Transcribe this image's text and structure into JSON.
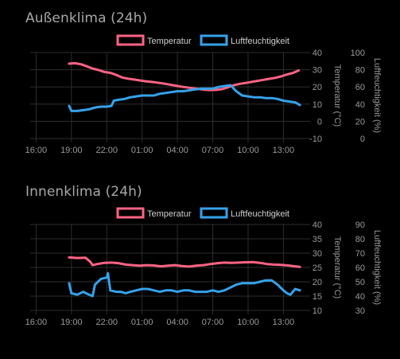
{
  "charts": [
    {
      "title": "Außenklima (24h)",
      "chart_data": {
        "type": "line",
        "x_ticks": [
          "16:00",
          "19:00",
          "22:00",
          "01:00",
          "04:00",
          "07:00",
          "10:00",
          "13:00"
        ],
        "x_range_hours": [
          15.5,
          39.0
        ],
        "legend_position": "top",
        "grid": true,
        "y_axis_left": {
          "label": "Temperatur (°C)",
          "ticks": [
            -10,
            0,
            10,
            20,
            30,
            40
          ],
          "range": [
            -10,
            40
          ]
        },
        "y_axis_right": {
          "label": "Luftfeuchtigkeit (%)",
          "ticks": [
            0,
            20,
            40,
            60,
            80,
            100
          ],
          "range": [
            0,
            100
          ]
        },
        "series": [
          {
            "name": "Temperatur",
            "axis": "left",
            "color": "#ff6384",
            "x": [
              18.8,
              19.3,
              19.8,
              20.3,
              20.8,
              21.3,
              21.8,
              22.3,
              22.8,
              23.3,
              23.8,
              24.3,
              24.8,
              25.3,
              25.8,
              26.3,
              26.8,
              27.3,
              27.8,
              28.3,
              28.8,
              29.3,
              29.8,
              30.3,
              30.8,
              31.3,
              31.8,
              32.3,
              32.8,
              33.3,
              33.8,
              34.3,
              34.8,
              35.3,
              35.8,
              36.3,
              36.8,
              37.3,
              37.8,
              38.3
            ],
            "y": [
              33.5,
              33.8,
              33.2,
              32.0,
              30.7,
              29.8,
              28.7,
              28.2,
              27.0,
              25.5,
              24.8,
              24.3,
              23.8,
              23.3,
              22.9,
              22.5,
              22.0,
              21.4,
              20.8,
              20.2,
              19.7,
              19.2,
              18.8,
              18.4,
              18.2,
              18.3,
              18.7,
              19.8,
              21.0,
              21.8,
              22.3,
              22.9,
              23.5,
              24.1,
              24.7,
              25.3,
              26.1,
              27.2,
              28.1,
              29.6
            ]
          },
          {
            "name": "Luftfeuchtigkeit",
            "axis": "right",
            "color": "#36a2eb",
            "x": [
              18.8,
              19.0,
              19.5,
              20.0,
              20.5,
              21.0,
              21.5,
              22.0,
              22.4,
              22.6,
              23.0,
              23.5,
              24.0,
              24.5,
              25.0,
              25.5,
              26.0,
              26.5,
              27.0,
              27.5,
              28.0,
              28.5,
              29.0,
              29.5,
              30.0,
              30.5,
              31.0,
              31.5,
              32.0,
              32.5,
              33.0,
              33.5,
              34.0,
              34.5,
              35.0,
              35.5,
              36.0,
              36.5,
              37.0,
              37.5,
              38.0,
              38.4
            ],
            "y": [
              38,
              32,
              32,
              33,
              34,
              36,
              37,
              37,
              38,
              44,
              45,
              46,
              48,
              49,
              50,
              50,
              50,
              52,
              53,
              54,
              55,
              55,
              56,
              57,
              58,
              58,
              58,
              60,
              61,
              62,
              55,
              50,
              49,
              48,
              48,
              47,
              47,
              46,
              44,
              43,
              42,
              39
            ]
          }
        ]
      }
    },
    {
      "title": "Innenklima (24h)",
      "chart_data": {
        "type": "line",
        "x_ticks": [
          "16:00",
          "19:00",
          "22:00",
          "01:00",
          "04:00",
          "07:00",
          "10:00",
          "13:00"
        ],
        "x_range_hours": [
          15.5,
          39.0
        ],
        "legend_position": "top",
        "grid": true,
        "y_axis_left": {
          "label": "Temperatur (°C)",
          "ticks": [
            10,
            15,
            20,
            25,
            30,
            35,
            40
          ],
          "range": [
            10,
            40
          ]
        },
        "y_axis_right": {
          "label": "Luftfeuchtigkeit (%)",
          "ticks": [
            30,
            40,
            50,
            60,
            70,
            80,
            90
          ],
          "range": [
            30,
            90
          ]
        },
        "series": [
          {
            "name": "Temperatur",
            "axis": "left",
            "color": "#ff6384",
            "x": [
              18.8,
              19.5,
              20.2,
              20.6,
              20.8,
              21.2,
              21.8,
              22.4,
              23.0,
              23.6,
              24.2,
              24.8,
              25.4,
              26.0,
              26.6,
              27.2,
              27.8,
              28.4,
              29.0,
              29.6,
              30.2,
              30.8,
              31.4,
              32.0,
              32.6,
              33.2,
              33.8,
              34.4,
              35.0,
              35.6,
              36.2,
              36.8,
              37.4,
              38.0,
              38.4
            ],
            "y": [
              28.5,
              28.3,
              28.4,
              27.0,
              25.8,
              26.2,
              26.6,
              26.7,
              26.5,
              26.0,
              25.8,
              25.6,
              25.8,
              25.7,
              25.4,
              25.6,
              25.8,
              25.5,
              25.3,
              25.6,
              25.8,
              26.2,
              26.5,
              26.7,
              26.6,
              26.7,
              26.8,
              26.9,
              26.6,
              26.2,
              26.0,
              25.9,
              25.7,
              25.4,
              25.2
            ]
          },
          {
            "name": "Luftfeuchtigkeit",
            "axis": "right",
            "color": "#36a2eb",
            "x": [
              18.8,
              19.0,
              19.5,
              20.0,
              20.5,
              20.8,
              21.0,
              21.5,
              22.0,
              22.1,
              22.3,
              22.8,
              23.2,
              23.6,
              24.0,
              24.5,
              25.0,
              25.5,
              26.0,
              26.5,
              27.0,
              27.5,
              28.0,
              28.5,
              29.0,
              29.5,
              30.0,
              30.5,
              31.0,
              31.5,
              32.0,
              32.5,
              33.0,
              33.5,
              34.0,
              34.5,
              35.0,
              35.5,
              36.0,
              36.5,
              37.0,
              37.3,
              37.6,
              38.0,
              38.4
            ],
            "y": [
              49,
              42,
              41,
              43,
              41,
              40,
              48,
              52,
              53,
              56,
              44,
              43,
              43,
              42,
              43,
              44,
              45,
              45,
              44,
              43,
              44,
              44,
              43,
              44,
              44,
              43,
              43,
              43,
              44,
              43,
              44,
              46,
              48,
              49,
              49,
              49,
              50,
              51,
              51,
              48,
              44,
              42,
              41,
              45,
              44
            ]
          }
        ]
      }
    }
  ]
}
